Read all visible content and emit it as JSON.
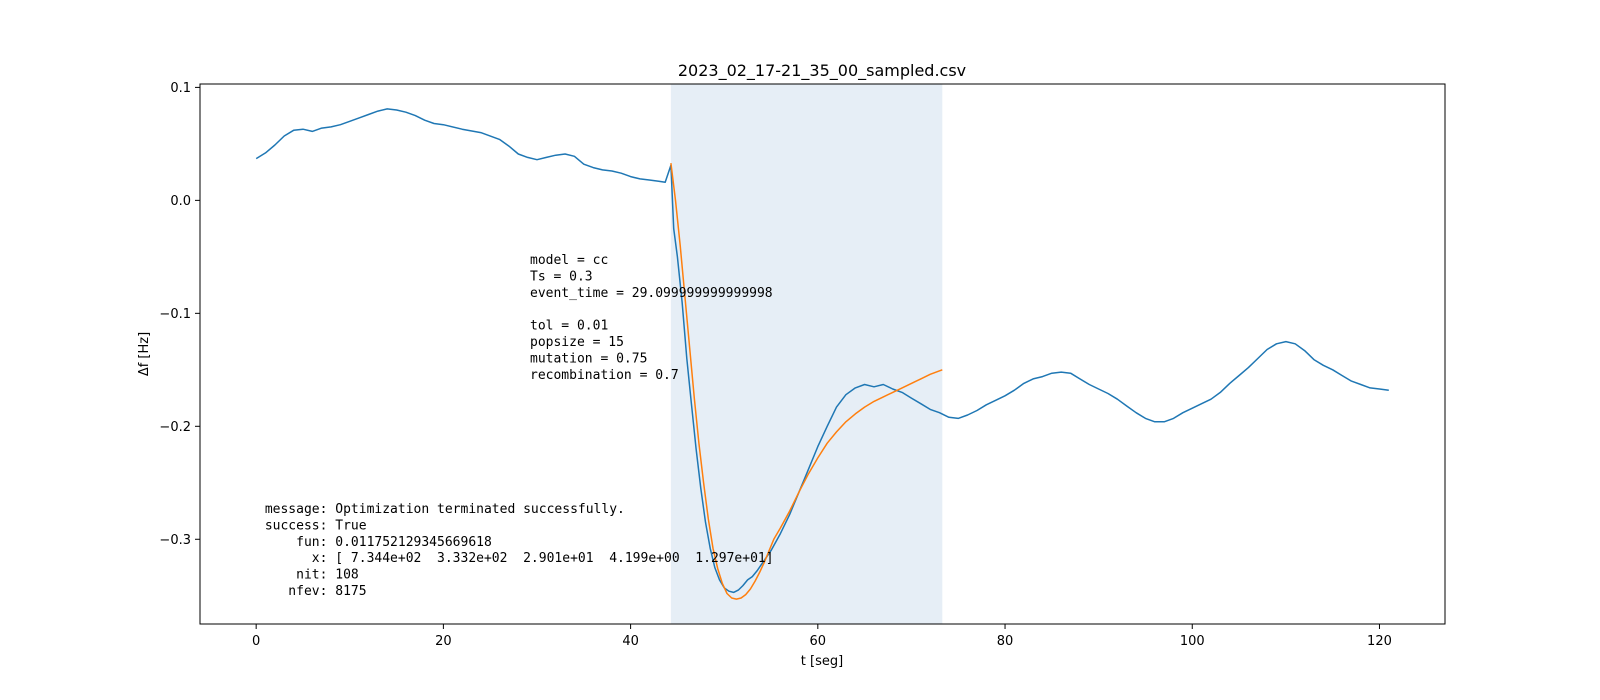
{
  "chart_data": {
    "type": "line",
    "title": "2023_02_17-21_35_00_sampled.csv",
    "xlabel": "t [seg]",
    "ylabel": "Δf [Hz]",
    "xlim": [
      -6,
      127
    ],
    "ylim": [
      -0.375,
      0.103
    ],
    "xticks": [
      0,
      20,
      40,
      60,
      80,
      100,
      120
    ],
    "yticks": [
      0.1,
      0.0,
      -0.1,
      -0.2,
      -0.3
    ],
    "ytick_labels": [
      "0.1",
      "0.0",
      "−0.1",
      "−0.2",
      "−0.3"
    ],
    "grid": false,
    "shaded_region": {
      "x0": 44.3,
      "x1": 73.3,
      "color": "#e6eef6"
    },
    "series": [
      {
        "color": "#1f77b4",
        "x": [
          0,
          1,
          2,
          3,
          4,
          5,
          6,
          7,
          8,
          9,
          10,
          11,
          12,
          13,
          14,
          15,
          16,
          17,
          18,
          19,
          20,
          22,
          24,
          26,
          27,
          28,
          29,
          30,
          31,
          32,
          33,
          34,
          35,
          36,
          37,
          38,
          39,
          40,
          41,
          42,
          43,
          43.7,
          44.3,
          44.6,
          45,
          45.5,
          46,
          46.5,
          47,
          47.5,
          48,
          48.5,
          49,
          49.5,
          50,
          50.5,
          51,
          51.5,
          52,
          52.5,
          53,
          53.5,
          54,
          55,
          56,
          57,
          58,
          59,
          60,
          61,
          62,
          63,
          64,
          65,
          66,
          67,
          68,
          69,
          70,
          71,
          72,
          73,
          74,
          75,
          76,
          77,
          78,
          79,
          80,
          81,
          82,
          83,
          84,
          85,
          86,
          87,
          88,
          89,
          90,
          91,
          92,
          93,
          94,
          95,
          96,
          97,
          98,
          99,
          100,
          101,
          102,
          103,
          104,
          105,
          106,
          107,
          108,
          109,
          110,
          111,
          112,
          113,
          114,
          115,
          116,
          117,
          118,
          119,
          120,
          121
        ],
        "y": [
          0.037,
          0.042,
          0.049,
          0.057,
          0.062,
          0.063,
          0.061,
          0.064,
          0.065,
          0.067,
          0.07,
          0.073,
          0.076,
          0.079,
          0.081,
          0.08,
          0.078,
          0.075,
          0.071,
          0.068,
          0.067,
          0.063,
          0.06,
          0.054,
          0.048,
          0.041,
          0.038,
          0.036,
          0.038,
          0.04,
          0.041,
          0.039,
          0.032,
          0.029,
          0.027,
          0.026,
          0.024,
          0.021,
          0.019,
          0.018,
          0.017,
          0.016,
          0.031,
          -0.025,
          -0.05,
          -0.09,
          -0.14,
          -0.18,
          -0.22,
          -0.255,
          -0.285,
          -0.308,
          -0.325,
          -0.336,
          -0.343,
          -0.346,
          -0.347,
          -0.345,
          -0.341,
          -0.336,
          -0.333,
          -0.328,
          -0.322,
          -0.31,
          -0.295,
          -0.278,
          -0.258,
          -0.238,
          -0.218,
          -0.2,
          -0.183,
          -0.172,
          -0.166,
          -0.163,
          -0.165,
          -0.163,
          -0.167,
          -0.17,
          -0.175,
          -0.18,
          -0.185,
          -0.188,
          -0.192,
          -0.193,
          -0.19,
          -0.186,
          -0.181,
          -0.177,
          -0.173,
          -0.168,
          -0.162,
          -0.158,
          -0.156,
          -0.153,
          -0.152,
          -0.153,
          -0.158,
          -0.163,
          -0.167,
          -0.171,
          -0.176,
          -0.182,
          -0.188,
          -0.193,
          -0.196,
          -0.196,
          -0.193,
          -0.188,
          -0.184,
          -0.18,
          -0.176,
          -0.17,
          -0.162,
          -0.155,
          -0.148,
          -0.14,
          -0.132,
          -0.127,
          -0.125,
          -0.127,
          -0.133,
          -0.141,
          -0.146,
          -0.15,
          -0.155,
          -0.16,
          -0.163,
          -0.166,
          -0.167,
          -0.168
        ]
      },
      {
        "color": "#ff7f0e",
        "x": [
          44.3,
          44.8,
          45.3,
          45.8,
          46.3,
          46.8,
          47.3,
          47.8,
          48.3,
          48.8,
          49.3,
          49.8,
          50.3,
          50.8,
          51.3,
          51.8,
          52.3,
          52.8,
          53.3,
          53.8,
          54.3,
          54.8,
          55.3,
          56,
          57,
          58,
          59,
          60,
          61,
          62,
          63,
          64,
          65,
          66,
          67,
          68,
          69,
          70,
          71,
          72,
          73.3
        ],
        "y": [
          0.033,
          0.0,
          -0.04,
          -0.085,
          -0.13,
          -0.175,
          -0.215,
          -0.25,
          -0.282,
          -0.308,
          -0.326,
          -0.339,
          -0.348,
          -0.352,
          -0.353,
          -0.352,
          -0.349,
          -0.344,
          -0.337,
          -0.329,
          -0.32,
          -0.31,
          -0.3,
          -0.29,
          -0.275,
          -0.258,
          -0.242,
          -0.228,
          -0.215,
          -0.205,
          -0.196,
          -0.189,
          -0.183,
          -0.178,
          -0.174,
          -0.17,
          -0.166,
          -0.162,
          -0.158,
          -0.154,
          -0.15
        ]
      }
    ],
    "annotations": {
      "params": [
        "model = cc",
        "Ts = 0.3",
        "event_time = 29.099999999999998",
        "",
        "tol = 0.01",
        "popsize = 15",
        "mutation = 0.75",
        "recombination = 0.7"
      ],
      "result": [
        " message: Optimization terminated successfully.",
        " success: True",
        "     fun: 0.011752129345669618",
        "       x: [ 7.344e+02  3.332e+02  2.901e+01  4.199e+00  1.297e+01]",
        "     nit: 108",
        "    nfev: 8175"
      ]
    }
  }
}
